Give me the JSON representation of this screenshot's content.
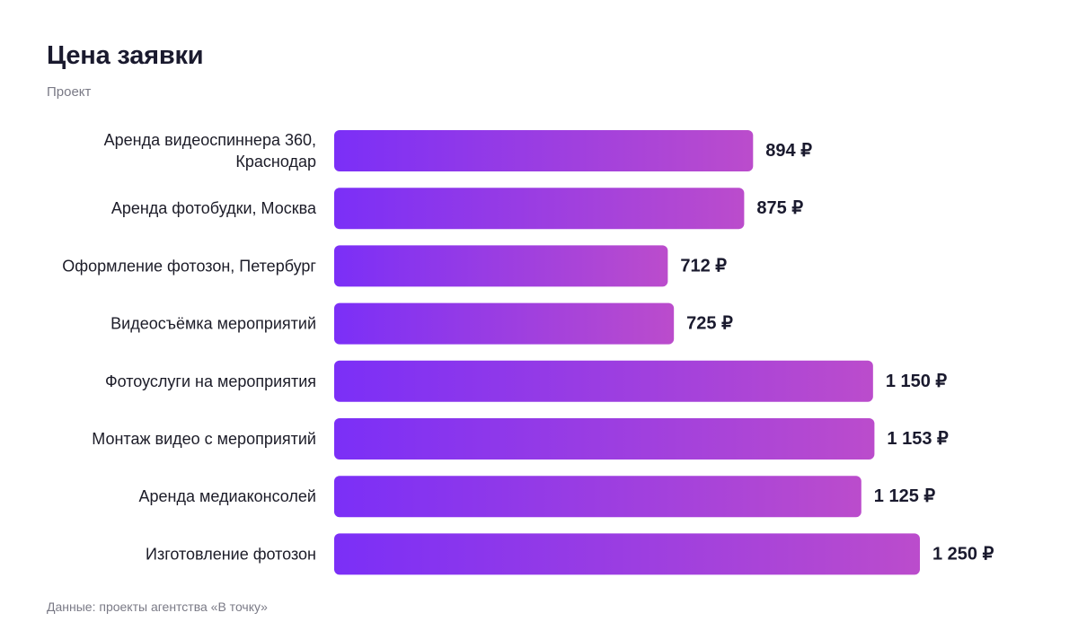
{
  "title": "Цена заявки",
  "subtitle": "Проект",
  "footer": "Данные: проекты агентства «В точку»",
  "colors": {
    "bar_gradient_start": "#7b2ff7",
    "bar_gradient_end": "#bb4ccc",
    "text": "#1c1c28",
    "muted": "#7a7a86"
  },
  "chart_data": {
    "type": "bar",
    "orientation": "horizontal",
    "title": "Цена заявки",
    "subtitle": "Проект",
    "categories": [
      [
        "Аренда видеоспиннера 360,",
        "Краснодар"
      ],
      [
        "Аренда фотобудки, Москва"
      ],
      [
        "Оформление фотозон, Петербург"
      ],
      [
        "Видеосъёмка мероприятий"
      ],
      [
        "Фотоуслуги на мероприятия"
      ],
      [
        "Монтаж видео с мероприятий"
      ],
      [
        "Аренда медиаконсолей"
      ],
      [
        "Изготовление фотозон"
      ]
    ],
    "values": [
      894,
      875,
      712,
      725,
      1150,
      1153,
      1125,
      1250
    ],
    "value_labels": [
      "894 ₽",
      "875 ₽",
      "712 ₽",
      "725 ₽",
      "1 150 ₽",
      "1 153 ₽",
      "1 125 ₽",
      "1 250 ₽"
    ],
    "unit": "₽",
    "grid": false,
    "legend": "none",
    "source": "Данные: проекты агентства «В точку»"
  }
}
